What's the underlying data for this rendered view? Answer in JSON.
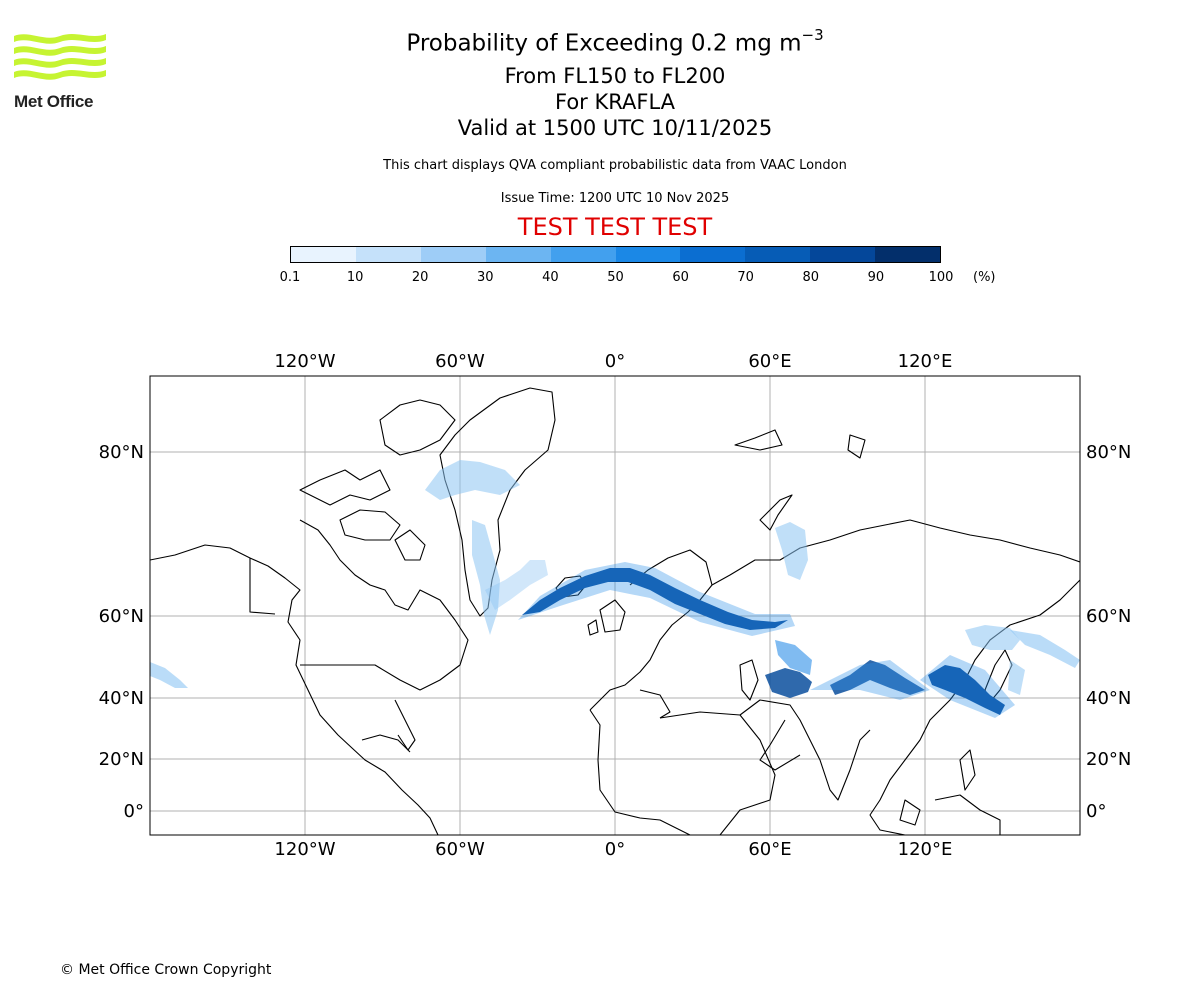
{
  "header": {
    "logo_text": "Met Office",
    "title_main": "Probability of Exceeding 0.2 mg m",
    "title_exp": "−3",
    "level_range": "From FL150 to FL200",
    "volcano": "For KRAFLA",
    "valid_time": "Valid at 1500 UTC 10/11/2025",
    "description": "This chart displays QVA compliant probabilistic data from VAAC London",
    "issue_time": "Issue Time: 1200 UTC 10 Nov 2025",
    "test_banner": "TEST TEST TEST"
  },
  "colorbar": {
    "ticks": [
      "0.1",
      "10",
      "20",
      "30",
      "40",
      "50",
      "60",
      "70",
      "80",
      "90",
      "100"
    ],
    "unit": "(%)",
    "colors": [
      "#e8f3fe",
      "#c5e1fa",
      "#9ecdf7",
      "#6cb5f2",
      "#42a0ee",
      "#1b88e6",
      "#0b6ed1",
      "#065cb6",
      "#04479a",
      "#032f6b"
    ]
  },
  "map": {
    "lon_ticks": [
      "120°W",
      "60°W",
      "0°",
      "60°E",
      "120°E"
    ],
    "lat_ticks": [
      "80°N",
      "60°N",
      "40°N",
      "20°N",
      "0°"
    ],
    "colors": {
      "coast": "#000000",
      "grid": "#b0b0b0",
      "ash_light": "#8cc4f3",
      "ash_mid": "#2c8ee8",
      "ash_dark": "#0b4f9e"
    }
  },
  "footer": {
    "copyright": "© Met Office Crown Copyright"
  }
}
